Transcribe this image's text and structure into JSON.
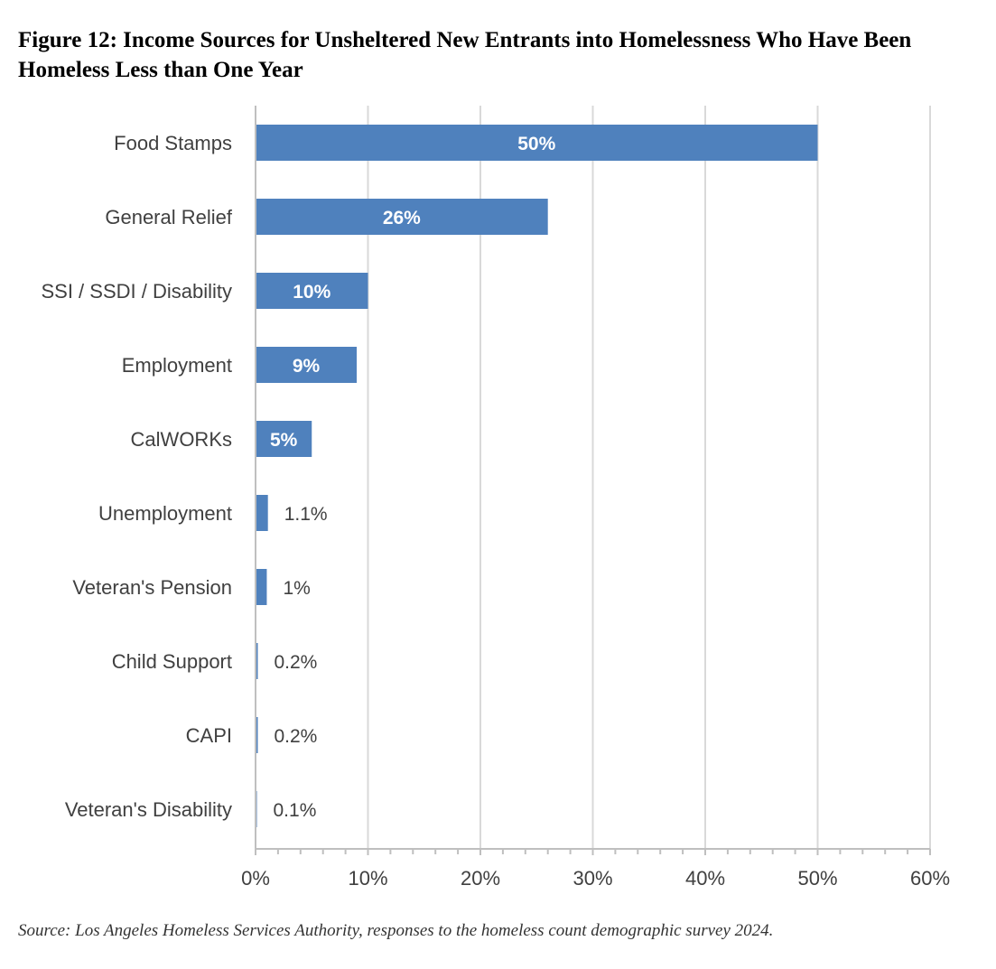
{
  "figure": {
    "title": "Figure 12: Income Sources for Unsheltered New Entrants into Homelessness Who Have Been Homeless Less than One Year",
    "source": "Source: Los Angeles Homeless Services Authority, responses to the homeless count demographic survey 2024."
  },
  "chart_data": {
    "type": "bar",
    "orientation": "horizontal",
    "title": "",
    "xlabel": "",
    "ylabel": "",
    "categories": [
      "Food Stamps",
      "General Relief",
      "SSI / SSDI / Disability",
      "Employment",
      "CalWORKs",
      "Unemployment",
      "Veteran's Pension",
      "Child Support",
      "CAPI",
      "Veteran's Disability"
    ],
    "values": [
      50,
      26,
      10,
      9,
      5,
      1.1,
      1,
      0.2,
      0.2,
      0.1
    ],
    "data_labels": [
      "50%",
      "26%",
      "10%",
      "9%",
      "5%",
      "1.1%",
      "1%",
      "0.2%",
      "0.2%",
      "0.1%"
    ],
    "xlim": [
      0,
      60
    ],
    "x_ticks": [
      0,
      10,
      20,
      30,
      40,
      50,
      60
    ],
    "x_tick_labels": [
      "0%",
      "10%",
      "20%",
      "30%",
      "40%",
      "50%",
      "60%"
    ],
    "grid": "vertical major gridlines",
    "legend": "none",
    "bar_color": "#4F81BD",
    "grid_color": "#D9D9D9",
    "axis_color": "#BFBFBF"
  }
}
